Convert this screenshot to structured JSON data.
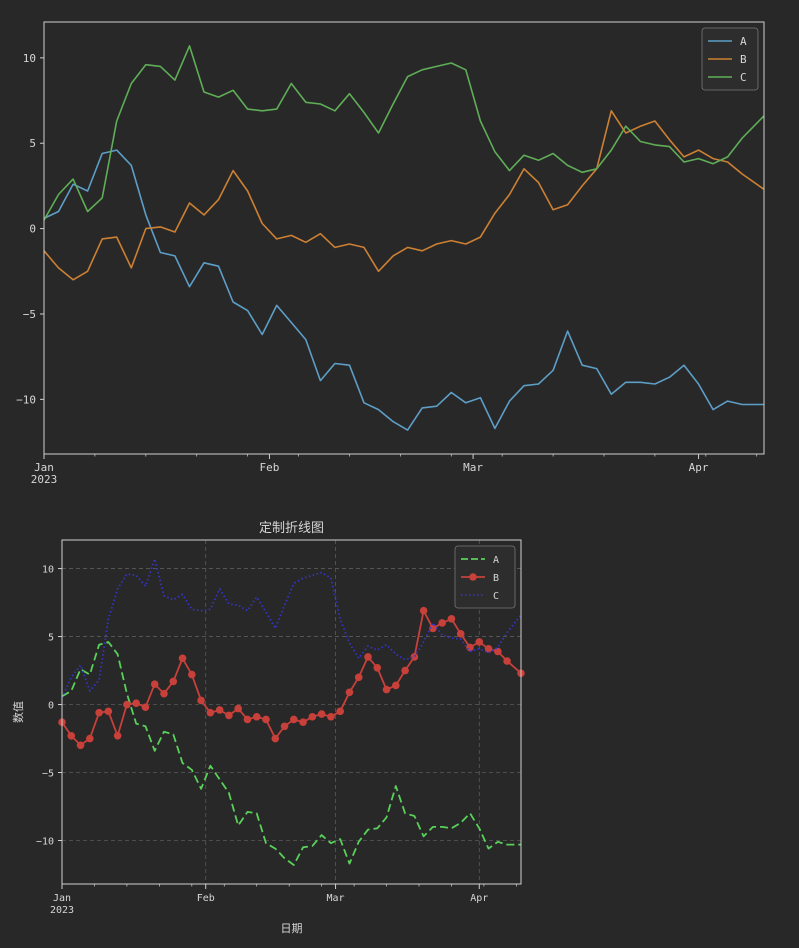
{
  "charts": [
    {
      "chart_data": {
        "type": "line",
        "title": "",
        "xlabel": "",
        "ylabel": "",
        "x_start": "2023-01-01",
        "x_end": "2023-04-10",
        "x_ticks": [
          {
            "date": "2023-01-01",
            "label": "Jan"
          },
          {
            "date": "2023-02-01",
            "label": "Feb"
          },
          {
            "date": "2023-03-01",
            "label": "Mar"
          },
          {
            "date": "2023-04-01",
            "label": "Apr"
          }
        ],
        "x_year_label": "2023",
        "ylim": [
          -13.2,
          12.1
        ],
        "y_ticks": [
          10,
          5,
          0,
          -5,
          -10
        ],
        "grid": false,
        "legend": "top-right",
        "series": [
          {
            "name": "A",
            "color": "#5d9ec7",
            "style": "solid",
            "marker": "none",
            "points": [
              [
                "2023-01-01",
                0.6
              ],
              [
                "2023-01-03",
                1.0
              ],
              [
                "2023-01-05",
                2.6
              ],
              [
                "2023-01-07",
                2.2
              ],
              [
                "2023-01-09",
                4.4
              ],
              [
                "2023-01-11",
                4.6
              ],
              [
                "2023-01-13",
                3.7
              ],
              [
                "2023-01-15",
                0.8
              ],
              [
                "2023-01-17",
                -1.4
              ],
              [
                "2023-01-19",
                -1.6
              ],
              [
                "2023-01-21",
                -3.4
              ],
              [
                "2023-01-23",
                -2.0
              ],
              [
                "2023-01-25",
                -2.2
              ],
              [
                "2023-01-27",
                -4.3
              ],
              [
                "2023-01-29",
                -4.8
              ],
              [
                "2023-01-31",
                -6.2
              ],
              [
                "2023-02-02",
                -4.5
              ],
              [
                "2023-02-04",
                -5.5
              ],
              [
                "2023-02-06",
                -6.5
              ],
              [
                "2023-02-08",
                -8.9
              ],
              [
                "2023-02-10",
                -7.9
              ],
              [
                "2023-02-12",
                -8.0
              ],
              [
                "2023-02-14",
                -10.2
              ],
              [
                "2023-02-16",
                -10.6
              ],
              [
                "2023-02-18",
                -11.3
              ],
              [
                "2023-02-20",
                -11.8
              ],
              [
                "2023-02-22",
                -10.5
              ],
              [
                "2023-02-24",
                -10.4
              ],
              [
                "2023-02-26",
                -9.6
              ],
              [
                "2023-02-28",
                -10.2
              ],
              [
                "2023-03-02",
                -9.9
              ],
              [
                "2023-03-04",
                -11.7
              ],
              [
                "2023-03-06",
                -10.1
              ],
              [
                "2023-03-08",
                -9.2
              ],
              [
                "2023-03-10",
                -9.1
              ],
              [
                "2023-03-12",
                -8.3
              ],
              [
                "2023-03-14",
                -6.0
              ],
              [
                "2023-03-16",
                -8.0
              ],
              [
                "2023-03-18",
                -8.2
              ],
              [
                "2023-03-20",
                -9.7
              ],
              [
                "2023-03-22",
                -9.0
              ],
              [
                "2023-03-24",
                -9.0
              ],
              [
                "2023-03-26",
                -9.1
              ],
              [
                "2023-03-28",
                -8.7
              ],
              [
                "2023-03-30",
                -8.0
              ],
              [
                "2023-04-01",
                -9.1
              ],
              [
                "2023-04-03",
                -10.6
              ],
              [
                "2023-04-05",
                -10.1
              ],
              [
                "2023-04-07",
                -10.3
              ],
              [
                "2023-04-10",
                -10.3
              ]
            ]
          },
          {
            "name": "B",
            "color": "#cc8033",
            "style": "solid",
            "marker": "none",
            "points": [
              [
                "2023-01-01",
                -1.3
              ],
              [
                "2023-01-03",
                -2.3
              ],
              [
                "2023-01-05",
                -3.0
              ],
              [
                "2023-01-07",
                -2.5
              ],
              [
                "2023-01-09",
                -0.6
              ],
              [
                "2023-01-11",
                -0.5
              ],
              [
                "2023-01-13",
                -2.3
              ],
              [
                "2023-01-15",
                0.0
              ],
              [
                "2023-01-17",
                0.1
              ],
              [
                "2023-01-19",
                -0.2
              ],
              [
                "2023-01-21",
                1.5
              ],
              [
                "2023-01-23",
                0.8
              ],
              [
                "2023-01-25",
                1.7
              ],
              [
                "2023-01-27",
                3.4
              ],
              [
                "2023-01-29",
                2.2
              ],
              [
                "2023-01-31",
                0.3
              ],
              [
                "2023-02-02",
                -0.6
              ],
              [
                "2023-02-04",
                -0.4
              ],
              [
                "2023-02-06",
                -0.8
              ],
              [
                "2023-02-08",
                -0.3
              ],
              [
                "2023-02-10",
                -1.1
              ],
              [
                "2023-02-12",
                -0.9
              ],
              [
                "2023-02-14",
                -1.1
              ],
              [
                "2023-02-16",
                -2.5
              ],
              [
                "2023-02-18",
                -1.6
              ],
              [
                "2023-02-20",
                -1.1
              ],
              [
                "2023-02-22",
                -1.3
              ],
              [
                "2023-02-24",
                -0.9
              ],
              [
                "2023-02-26",
                -0.7
              ],
              [
                "2023-02-28",
                -0.9
              ],
              [
                "2023-03-02",
                -0.5
              ],
              [
                "2023-03-04",
                0.9
              ],
              [
                "2023-03-06",
                2.0
              ],
              [
                "2023-03-08",
                3.5
              ],
              [
                "2023-03-10",
                2.7
              ],
              [
                "2023-03-12",
                1.1
              ],
              [
                "2023-03-14",
                1.4
              ],
              [
                "2023-03-16",
                2.5
              ],
              [
                "2023-03-18",
                3.5
              ],
              [
                "2023-03-20",
                6.9
              ],
              [
                "2023-03-22",
                5.6
              ],
              [
                "2023-03-24",
                6.0
              ],
              [
                "2023-03-26",
                6.3
              ],
              [
                "2023-03-28",
                5.2
              ],
              [
                "2023-03-30",
                4.2
              ],
              [
                "2023-04-01",
                4.6
              ],
              [
                "2023-04-03",
                4.1
              ],
              [
                "2023-04-05",
                3.9
              ],
              [
                "2023-04-07",
                3.2
              ],
              [
                "2023-04-10",
                2.3
              ]
            ]
          },
          {
            "name": "C",
            "color": "#5fae57",
            "style": "solid",
            "marker": "none",
            "points": [
              [
                "2023-01-01",
                0.5
              ],
              [
                "2023-01-03",
                2.0
              ],
              [
                "2023-01-05",
                2.9
              ],
              [
                "2023-01-07",
                1.0
              ],
              [
                "2023-01-09",
                1.8
              ],
              [
                "2023-01-11",
                6.3
              ],
              [
                "2023-01-13",
                8.5
              ],
              [
                "2023-01-15",
                9.6
              ],
              [
                "2023-01-17",
                9.5
              ],
              [
                "2023-01-19",
                8.7
              ],
              [
                "2023-01-21",
                10.7
              ],
              [
                "2023-01-23",
                8.0
              ],
              [
                "2023-01-25",
                7.7
              ],
              [
                "2023-01-27",
                8.1
              ],
              [
                "2023-01-29",
                7.0
              ],
              [
                "2023-01-31",
                6.9
              ],
              [
                "2023-02-02",
                7.0
              ],
              [
                "2023-02-04",
                8.5
              ],
              [
                "2023-02-06",
                7.4
              ],
              [
                "2023-02-08",
                7.3
              ],
              [
                "2023-02-10",
                6.9
              ],
              [
                "2023-02-12",
                7.9
              ],
              [
                "2023-02-14",
                6.8
              ],
              [
                "2023-02-16",
                5.6
              ],
              [
                "2023-02-18",
                7.3
              ],
              [
                "2023-02-20",
                8.9
              ],
              [
                "2023-02-22",
                9.3
              ],
              [
                "2023-02-24",
                9.5
              ],
              [
                "2023-02-26",
                9.7
              ],
              [
                "2023-02-28",
                9.3
              ],
              [
                "2023-03-02",
                6.3
              ],
              [
                "2023-03-04",
                4.5
              ],
              [
                "2023-03-06",
                3.4
              ],
              [
                "2023-03-08",
                4.3
              ],
              [
                "2023-03-10",
                4.0
              ],
              [
                "2023-03-12",
                4.4
              ],
              [
                "2023-03-14",
                3.7
              ],
              [
                "2023-03-16",
                3.3
              ],
              [
                "2023-03-18",
                3.5
              ],
              [
                "2023-03-20",
                4.6
              ],
              [
                "2023-03-22",
                6.0
              ],
              [
                "2023-03-24",
                5.1
              ],
              [
                "2023-03-26",
                4.9
              ],
              [
                "2023-03-28",
                4.8
              ],
              [
                "2023-03-30",
                3.9
              ],
              [
                "2023-04-01",
                4.1
              ],
              [
                "2023-04-03",
                3.8
              ],
              [
                "2023-04-05",
                4.2
              ],
              [
                "2023-04-07",
                5.3
              ],
              [
                "2023-04-10",
                6.6
              ]
            ]
          }
        ]
      }
    },
    {
      "chart_data": {
        "type": "line",
        "title": "定制折线图",
        "xlabel": "日期",
        "ylabel": "数值",
        "x_start": "2023-01-01",
        "x_end": "2023-04-10",
        "x_ticks": [
          {
            "date": "2023-01-01",
            "label": "Jan"
          },
          {
            "date": "2023-02-01",
            "label": "Feb"
          },
          {
            "date": "2023-03-01",
            "label": "Mar"
          },
          {
            "date": "2023-04-01",
            "label": "Apr"
          }
        ],
        "x_year_label": "2023",
        "ylim": [
          -13.2,
          12.1
        ],
        "y_ticks": [
          10,
          5,
          0,
          -5,
          -10
        ],
        "grid": true,
        "legend": "top-right",
        "series": [
          {
            "name": "A",
            "color": "#59d059",
            "style": "dashed",
            "marker": "none",
            "ref": "A"
          },
          {
            "name": "B",
            "color": "#c8403a",
            "style": "solid",
            "marker": "circle",
            "ref": "B"
          },
          {
            "name": "C",
            "color": "#3434c8",
            "style": "dotted",
            "marker": "none",
            "ref": "C"
          }
        ]
      }
    }
  ]
}
